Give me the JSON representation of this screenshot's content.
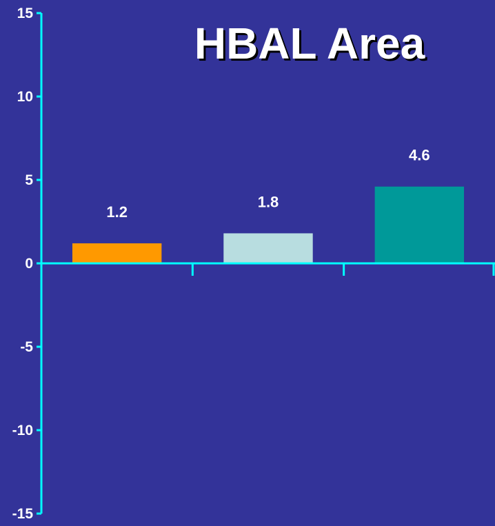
{
  "chart_data": {
    "type": "bar",
    "title": "HBAL Area",
    "xlabel": "",
    "ylabel": "",
    "ylim": [
      -15,
      15
    ],
    "yticks": [
      15,
      10,
      5,
      0,
      -5,
      -10,
      -15
    ],
    "ytick_labels": [
      "15",
      "10",
      "5",
      "0",
      "-5",
      "-10",
      "-15"
    ],
    "categories": [
      "",
      "",
      ""
    ],
    "values": [
      1.2,
      1.8,
      4.6
    ],
    "data_labels": [
      "1.2",
      "1.8",
      "4.6"
    ],
    "bar_colors": [
      "#ff9900",
      "#b8dde0",
      "#009999"
    ],
    "grid": false,
    "legend": "none"
  },
  "colors": {
    "background": "#333399",
    "axis": "#00ffff",
    "text": "#ffffff"
  }
}
